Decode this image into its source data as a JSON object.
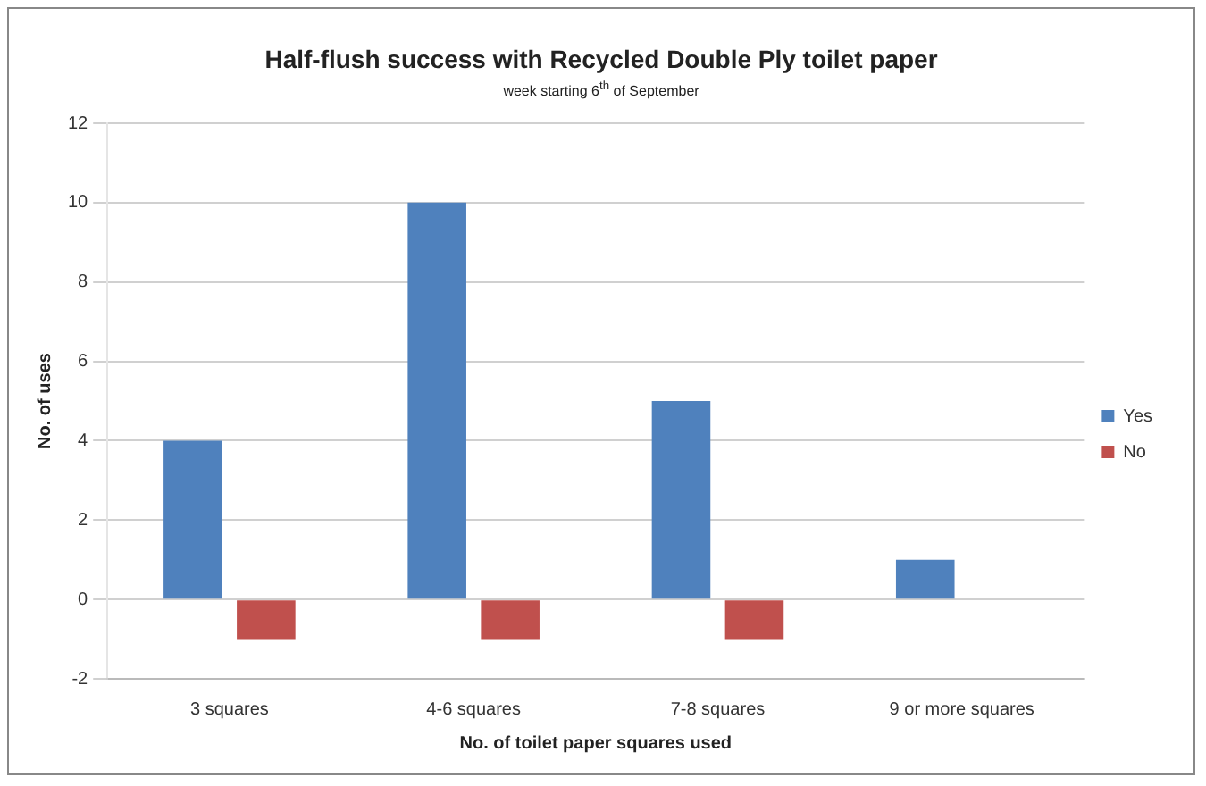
{
  "chart_data": {
    "type": "bar",
    "title": "Half-flush success with Recycled Double Ply toilet paper",
    "subtitle": "week starting 6$^{th}$ of September",
    "xlabel": "No. of toilet paper squares used",
    "ylabel": "No. of uses",
    "categories": [
      "3 squares",
      "4-6 squares",
      "7-8 squares",
      "9 or more squares"
    ],
    "series": [
      {
        "name": "Yes",
        "color": "#4f81bd",
        "values": [
          4,
          10,
          5,
          1
        ]
      },
      {
        "name": "No",
        "color": "#c0504d",
        "values": [
          -1,
          -1,
          -1,
          0
        ]
      }
    ],
    "ylim": [
      -2,
      12
    ],
    "yticks": [
      -2,
      0,
      2,
      4,
      6,
      8,
      10,
      12
    ],
    "grid": "y",
    "legend": "right"
  }
}
